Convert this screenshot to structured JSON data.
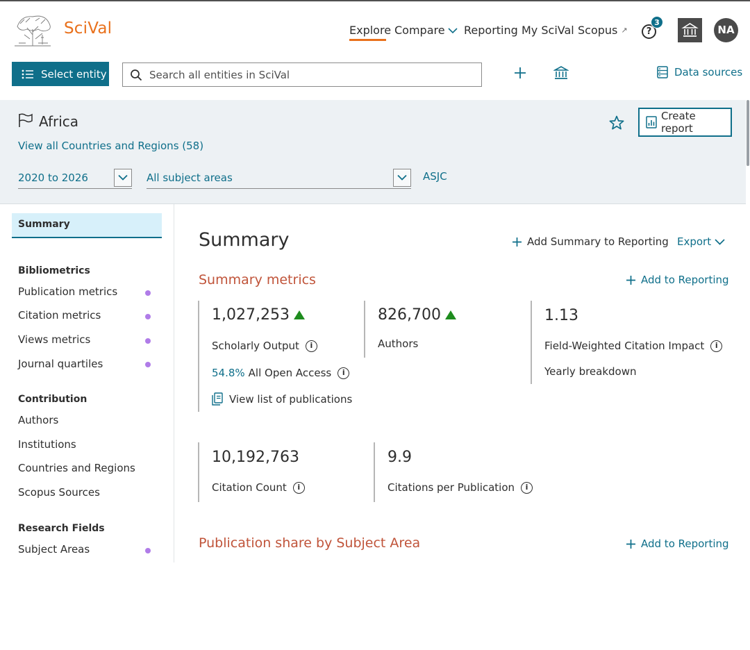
{
  "header": {
    "brand": "SciVal",
    "nav": {
      "explore": "Explore",
      "compare": "Compare",
      "reporting": "Reporting",
      "my_scival": "My SciVal",
      "scopus": "Scopus",
      "scopus_external": "↗"
    },
    "help_icon": "?",
    "help_badge": "3",
    "avatar_initials": "NA",
    "accent_color": "#e9711c"
  },
  "toolbar": {
    "select_entity_label": "Select entity",
    "search_placeholder": "Search all entities in SciVal",
    "data_sources_label": "Data sources"
  },
  "entity": {
    "name": "Africa",
    "view_all_link": "View all Countries and Regions (58)",
    "create_report_label": "Create report",
    "year_range": "2020 to 2026",
    "subject_areas": "All subject areas",
    "classification": "ASJC"
  },
  "sidebar": {
    "summary_label": "Summary",
    "groups": [
      {
        "heading": "Bibliometrics",
        "items": [
          "Publication metrics",
          "Citation metrics",
          "Views metrics",
          "Journal quartiles"
        ]
      },
      {
        "heading": "Contribution",
        "items": [
          "Authors",
          "Institutions",
          "Countries and Regions",
          "Scopus Sources"
        ]
      },
      {
        "heading": "Research Fields",
        "items": [
          "Subject Areas"
        ]
      }
    ]
  },
  "main": {
    "title": "Summary",
    "add_summary_label": "Add Summary to Reporting",
    "export_label": "Export",
    "summary_metrics_title": "Summary metrics",
    "add_to_reporting_label": "Add to Reporting",
    "metrics": {
      "scholarly_output": {
        "value": "1,027,253",
        "label": "Scholarly Output"
      },
      "open_access_pct": "54.8%",
      "open_access_label": "All Open Access",
      "view_publications_label": "View list of publications",
      "authors": {
        "value": "826,700",
        "label": "Authors"
      },
      "fwci": {
        "value": "1.13",
        "label": "Field-Weighted Citation Impact"
      },
      "yearly_breakdown_label": "Yearly breakdown",
      "citation_count": {
        "value": "10,192,763",
        "label": "Citation Count"
      },
      "citations_per_pub": {
        "value": "9.9",
        "label": "Citations per Publication"
      }
    },
    "publication_share_title": "Publication share by Subject Area"
  },
  "icons": {
    "info": "i"
  }
}
